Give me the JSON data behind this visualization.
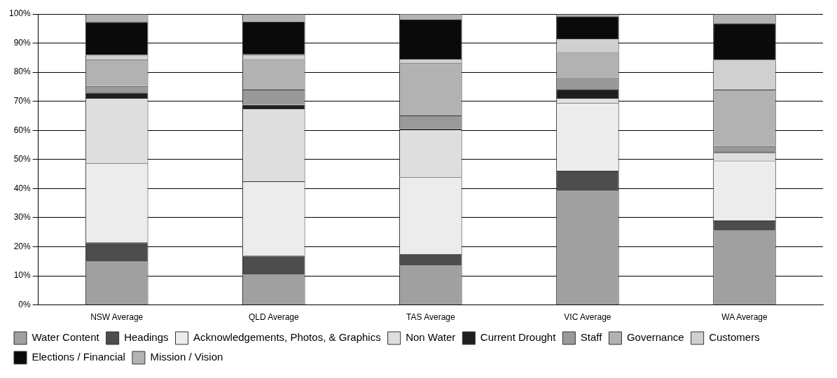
{
  "chart_data": {
    "type": "bar",
    "stacked": true,
    "categories": [
      "NSW Average",
      "QLD Average",
      "TAS Average",
      "VIC Average",
      "WA Average"
    ],
    "series": [
      {
        "name": "Water Content",
        "color": "#a0a0a0",
        "values": [
          15,
          10.4,
          13.5,
          39.3,
          25.5
        ]
      },
      {
        "name": "Headings",
        "color": "#4d4d4d",
        "values": [
          6.5,
          6.5,
          4,
          6.8,
          3.5
        ]
      },
      {
        "name": "Acknowledgements, Photos, & Graphics",
        "color": "#ececec",
        "values": [
          27.2,
          25.6,
          26.5,
          23.4,
          20.6
        ]
      },
      {
        "name": "Non Water",
        "color": "#dedede",
        "values": [
          22.4,
          25,
          16.3,
          1.6,
          2.8
        ]
      },
      {
        "name": "Current Drought",
        "color": "#1f1f1f",
        "values": [
          1.9,
          1.3,
          0.3,
          3.1,
          0.4
        ]
      },
      {
        "name": "Staff",
        "color": "#999999",
        "values": [
          2.3,
          5.2,
          4.5,
          4,
          1.8
        ]
      },
      {
        "name": "Governance",
        "color": "#b2b2b2",
        "values": [
          9.1,
          10.5,
          18,
          8.7,
          19.4
        ]
      },
      {
        "name": "Customers",
        "color": "#d0d0d0",
        "values": [
          1.5,
          1.6,
          1.5,
          4.7,
          10.3
        ]
      },
      {
        "name": "Elections / Financial",
        "color": "#0a0a0a",
        "values": [
          11.4,
          11.4,
          13.5,
          7.6,
          12.5
        ]
      },
      {
        "name": "Mission / Vision",
        "color": "#b3b3b3",
        "values": [
          2.7,
          2.5,
          2,
          0.8,
          3.2
        ]
      }
    ],
    "ylim": [
      0,
      100
    ],
    "yticks": [
      {
        "value": 0,
        "label": "0%"
      },
      {
        "value": 10,
        "label": "10%"
      },
      {
        "value": 20,
        "label": "20%"
      },
      {
        "value": 30,
        "label": "30%"
      },
      {
        "value": 40,
        "label": "40%"
      },
      {
        "value": 50,
        "label": "50%"
      },
      {
        "value": 60,
        "label": "60%"
      },
      {
        "value": 70,
        "label": "70%"
      },
      {
        "value": 80,
        "label": "80%"
      },
      {
        "value": 90,
        "label": "90%"
      },
      {
        "value": 100,
        "label": "100%"
      }
    ],
    "grid": "y",
    "legend": "bottom"
  }
}
